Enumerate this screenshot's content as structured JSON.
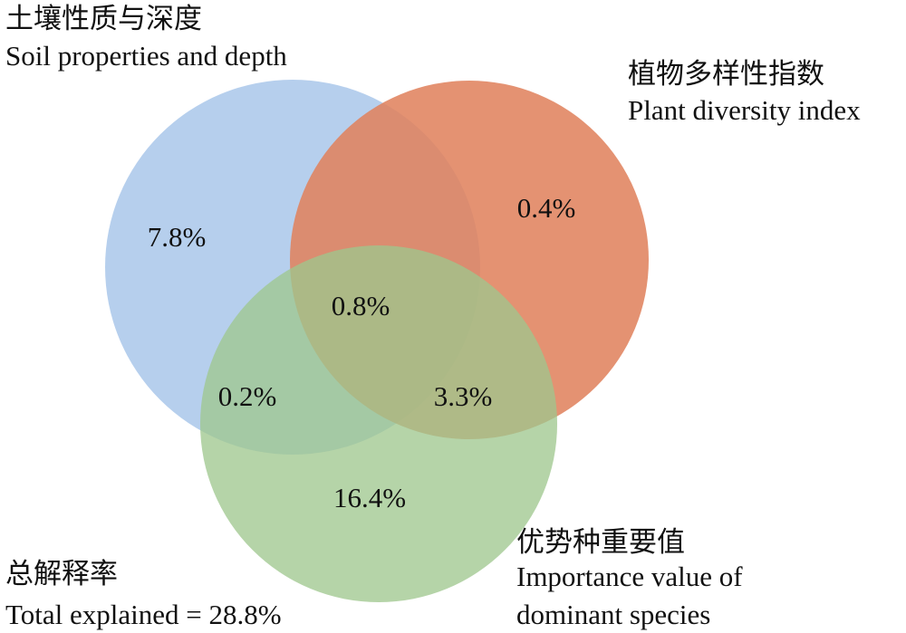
{
  "chart_data": {
    "type": "venn",
    "sets": [
      {
        "key": "soil",
        "name_cn": "土壤性质与深度",
        "name_en": "Soil properties and depth",
        "color": "#a9c7ea"
      },
      {
        "key": "plant",
        "name_cn": "植物多样性指数",
        "name_en": "Plant diversity index",
        "color": "#e0835f"
      },
      {
        "key": "importance",
        "name_cn": "优势种重要值",
        "name_en_line1": "Importance value of",
        "name_en_line2": "dominant species",
        "color": "#a8cf96"
      }
    ],
    "regions": {
      "soil_only": "7.8%",
      "plant_only": "0.4%",
      "importance_only": "16.4%",
      "soil_plant_importance": "0.8%",
      "soil_importance": "0.2%",
      "plant_importance": "3.3%"
    },
    "total": {
      "cn": "总解释率",
      "en": "Total explained = 28.8%"
    }
  }
}
